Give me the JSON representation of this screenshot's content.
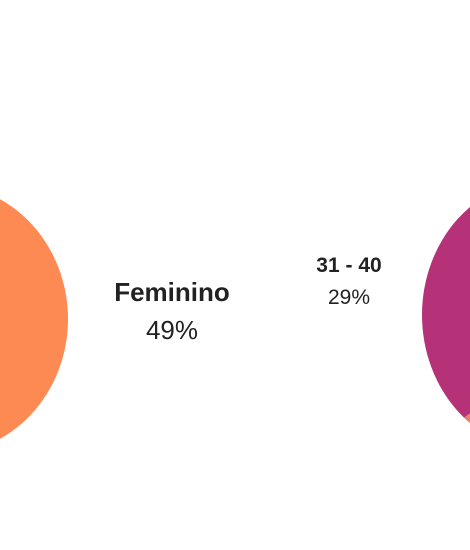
{
  "gender_segment": {
    "name": "Feminino",
    "percent": "49%",
    "color": "#fe8a53"
  },
  "age_segment": {
    "name": "31 - 40",
    "percent": "29%",
    "color": "#b53279",
    "accent_color": "#f0876e"
  }
}
